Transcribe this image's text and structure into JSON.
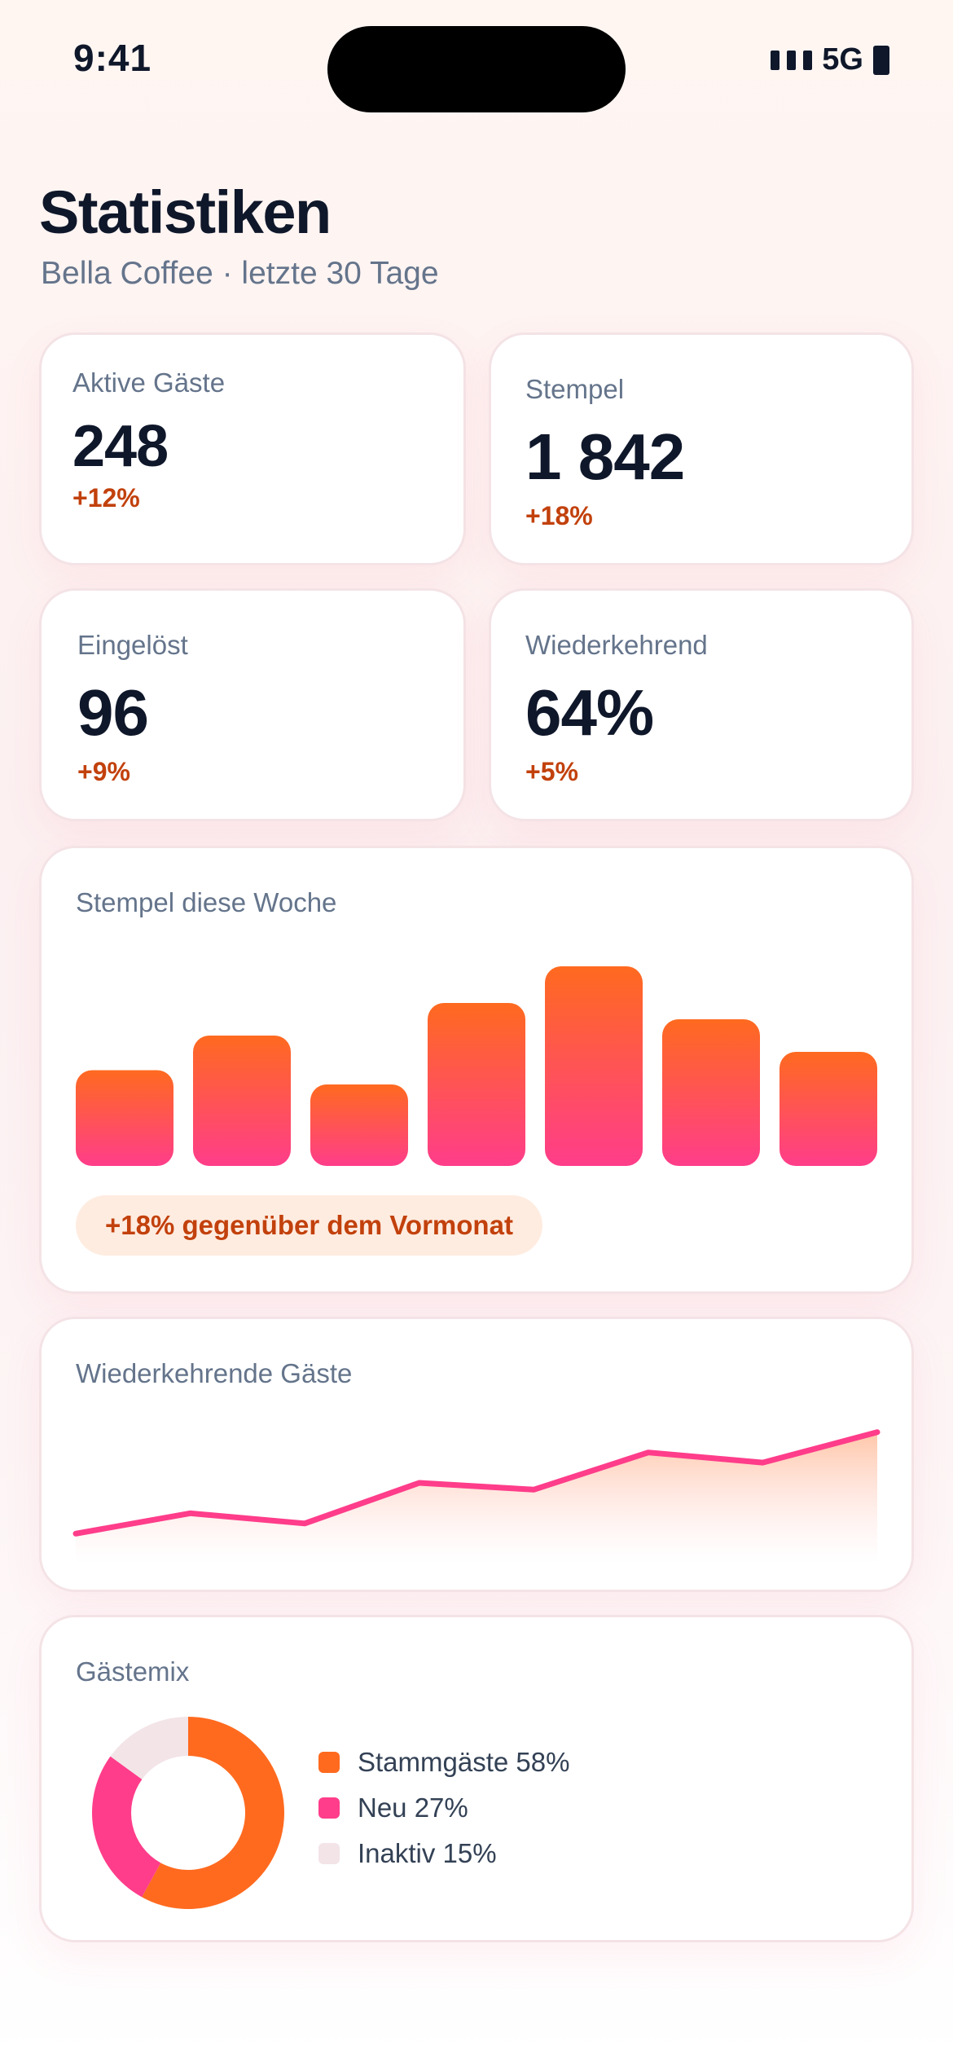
{
  "status_bar": {
    "time": "9:41",
    "network": "5G",
    "icons": [
      "signal-icon",
      "battery-icon"
    ]
  },
  "header": {
    "title": "Statistiken",
    "subtitle": "Bella Coffee · letzte 30 Tage"
  },
  "stats": [
    {
      "label": "Aktive Gäste",
      "value": "248",
      "delta": "+12%"
    },
    {
      "label": "Stempel",
      "value": "1 842",
      "delta": "+18%"
    },
    {
      "label": "Eingelöst",
      "value": "96",
      "delta": "+9%"
    },
    {
      "label": "Wiederkehrend",
      "value": "64%",
      "delta": "+5%"
    }
  ],
  "colors": {
    "accent_orange": "#ff6a1f",
    "accent_pink": "#ff3d8a",
    "inactive": "#f3e4e8",
    "delta_text": "#c2410c",
    "badge_bg": "#ffece0"
  },
  "chart_data": [
    {
      "type": "bar",
      "title": "Stempel diese Woche",
      "categories": [
        "",
        "",
        "",
        "",
        "",
        "",
        ""
      ],
      "values": [
        47,
        64,
        40,
        80,
        98,
        72,
        56
      ],
      "ylim": [
        0,
        100
      ],
      "grid": false,
      "badge": "+18% gegenüber dem Vormonat"
    },
    {
      "type": "area",
      "title": "Wiederkehrende Gäste",
      "x": [
        1,
        2,
        3,
        4,
        5,
        6,
        7,
        8
      ],
      "values": [
        10,
        22,
        16,
        40,
        36,
        58,
        52,
        70
      ],
      "ylim": [
        0,
        80
      ],
      "grid": false
    },
    {
      "type": "pie",
      "title": "Gästemix",
      "categories": [
        "Stammgäste",
        "Neu",
        "Inaktiv"
      ],
      "values": [
        58,
        27,
        15
      ],
      "legend": [
        "Stammgäste 58%",
        "Neu 27%",
        "Inaktiv 15%"
      ],
      "legend_position": "right",
      "colors": [
        "#ff6a1f",
        "#ff3d8a",
        "#f3e4e8"
      ]
    }
  ]
}
